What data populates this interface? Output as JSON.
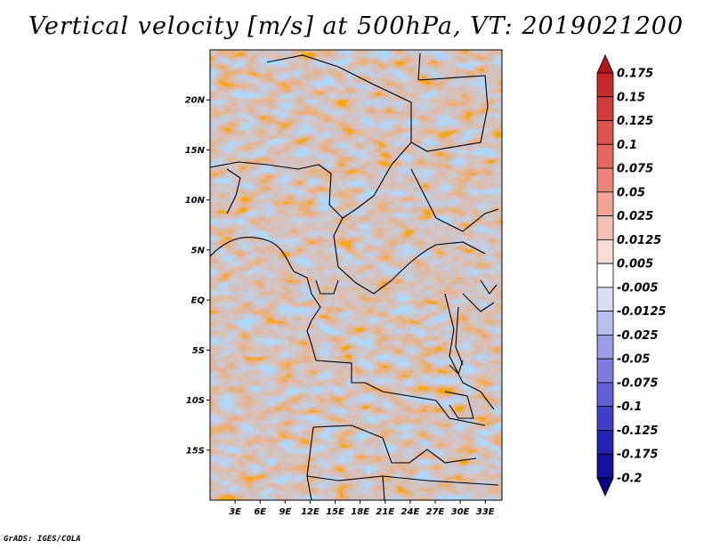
{
  "title": "Vertical velocity [m/s] at 500hPa, VT: 2019021200",
  "footer": "GrADS: IGES/COLA",
  "map": {
    "lon_range": [
      0,
      35
    ],
    "lat_range": [
      -20,
      25
    ],
    "lat_ticks": [
      "20N",
      "15N",
      "10N",
      "5N",
      "EQ",
      "5S",
      "10S",
      "15S"
    ],
    "lon_ticks": [
      "3E",
      "6E",
      "9E",
      "12E",
      "15E",
      "18E",
      "21E",
      "24E",
      "27E",
      "30E",
      "33E"
    ]
  },
  "colorbar": {
    "labels": [
      "0.175",
      "0.15",
      "0.125",
      "0.1",
      "0.075",
      "0.05",
      "0.025",
      "0.0125",
      "0.005",
      "-0.005",
      "-0.0125",
      "-0.025",
      "-0.05",
      "-0.075",
      "-0.1",
      "-0.125",
      "-0.175",
      "-0.2"
    ],
    "colors": [
      "#b1161a",
      "#c42a2a",
      "#d03c3a",
      "#dc524c",
      "#e5695f",
      "#ec8577",
      "#f2a295",
      "#f7c0b5",
      "#fbdcd4",
      "#ffffff",
      "#dcdcf7",
      "#bcbcf0",
      "#9c9ce8",
      "#7d7de0",
      "#5e5ed6",
      "#4040c6",
      "#2525b3",
      "#11119c",
      "#05057f"
    ]
  }
}
